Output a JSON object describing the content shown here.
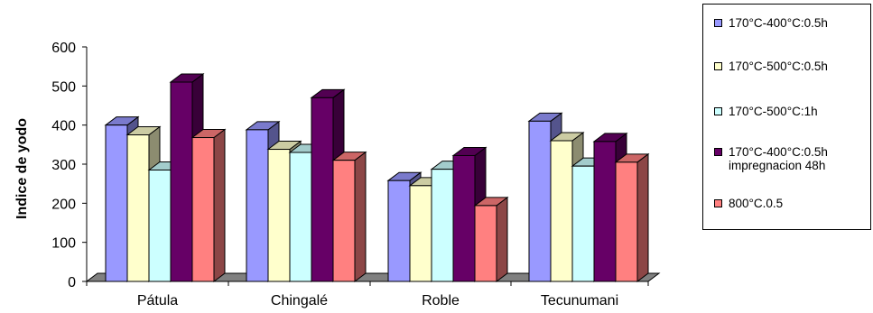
{
  "chart_data": {
    "type": "bar",
    "title": "",
    "xlabel": "",
    "ylabel": "Indice de yodo",
    "ylim": [
      0,
      600
    ],
    "yticks": [
      0,
      100,
      200,
      300,
      400,
      500,
      600
    ],
    "categories": [
      "Pátula",
      "Chingalé",
      "Roble",
      "Tecunumani"
    ],
    "series": [
      {
        "name": "170°C-400°C:0.5h",
        "color": "#9999ff",
        "values": [
          400,
          388,
          258,
          410
        ]
      },
      {
        "name": "170°C-500°C:0.5h",
        "color": "#ffffcc",
        "values": [
          375,
          338,
          245,
          360
        ]
      },
      {
        "name": "170°C-500°C:1h",
        "color": "#ccffff",
        "values": [
          285,
          330,
          287,
          295
        ]
      },
      {
        "name": "170°C-400°C:0.5h\nimpregnacion 48h",
        "color": "#660066",
        "values": [
          510,
          470,
          322,
          358
        ]
      },
      {
        "name": "800°C.0.5",
        "color": "#ff8080",
        "values": [
          368,
          310,
          194,
          305
        ]
      }
    ],
    "legend_position": "right",
    "grid": false
  }
}
